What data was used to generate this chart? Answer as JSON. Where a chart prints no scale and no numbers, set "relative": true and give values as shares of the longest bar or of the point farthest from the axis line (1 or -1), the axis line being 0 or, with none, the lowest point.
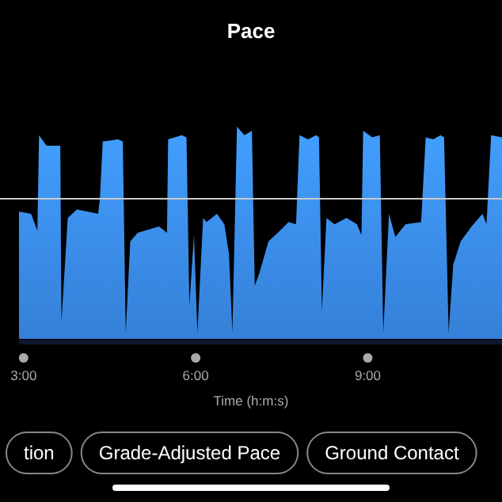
{
  "chart_data": {
    "type": "area",
    "title": "Pace",
    "xlabel": "Time (h:m:s)",
    "relative": true,
    "xlim": [
      2.92,
      11.34
    ],
    "xticks": [
      {
        "value": 3,
        "label": "3:00"
      },
      {
        "value": 6,
        "label": "6:00"
      },
      {
        "value": 9,
        "label": "9:00"
      }
    ],
    "ref_lines": [
      {
        "axis": "y",
        "value": 0.66,
        "color": "#c8c8c8"
      }
    ],
    "annotations": [
      "tion",
      "Grade-Adjusted Pace",
      "Ground Contact"
    ],
    "series": [
      {
        "color": "#3b8ff0",
        "x": [
          2.92,
          3.13,
          3.24,
          3.27,
          3.32,
          3.4,
          3.64,
          3.66,
          3.77,
          3.93,
          4.3,
          4.33,
          4.38,
          4.65,
          4.73,
          4.78,
          4.86,
          4.99,
          5.36,
          5.5,
          5.52,
          5.76,
          5.84,
          5.89,
          5.97,
          6.03,
          6.13,
          6.19,
          6.37,
          6.5,
          6.58,
          6.64,
          6.72,
          6.85,
          6.98,
          7.03,
          7.11,
          7.27,
          7.43,
          7.62,
          7.75,
          7.81,
          7.96,
          8.1,
          8.15,
          8.2,
          8.28,
          8.42,
          8.63,
          8.81,
          8.89,
          8.92,
          9.08,
          9.21,
          9.27,
          9.37,
          9.48,
          9.66,
          9.93,
          10.01,
          10.14,
          10.27,
          10.33,
          10.41,
          10.49,
          10.62,
          10.81,
          11.0,
          11.07,
          11.15,
          11.34
        ],
        "values": [
          0.6,
          0.59,
          0.51,
          0.96,
          0.94,
          0.91,
          0.91,
          0.08,
          0.57,
          0.61,
          0.59,
          0.66,
          0.93,
          0.94,
          0.93,
          0.03,
          0.46,
          0.5,
          0.53,
          0.5,
          0.94,
          0.96,
          0.95,
          0.16,
          0.49,
          0.03,
          0.57,
          0.55,
          0.59,
          0.54,
          0.4,
          0.03,
          1.0,
          0.96,
          0.98,
          0.25,
          0.31,
          0.46,
          0.5,
          0.55,
          0.54,
          0.96,
          0.94,
          0.96,
          0.95,
          0.13,
          0.57,
          0.54,
          0.57,
          0.54,
          0.49,
          0.98,
          0.95,
          0.96,
          0.03,
          0.59,
          0.48,
          0.54,
          0.55,
          0.95,
          0.94,
          0.96,
          0.95,
          0.03,
          0.35,
          0.46,
          0.53,
          0.59,
          0.54,
          0.96,
          0.95
        ]
      }
    ]
  }
}
